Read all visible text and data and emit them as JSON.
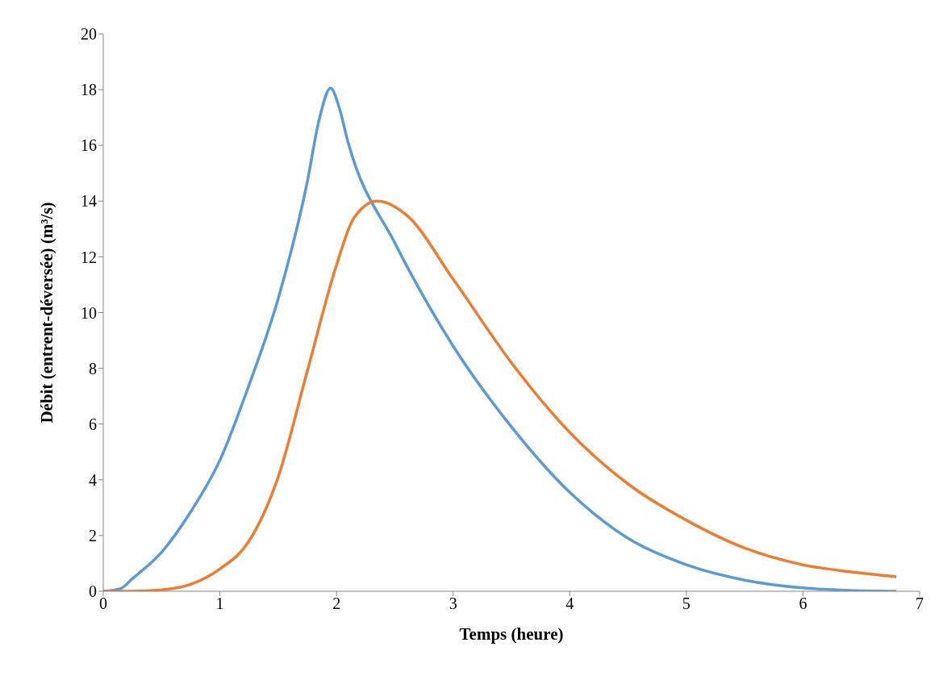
{
  "chart_data": {
    "type": "line",
    "xlabel": "Temps (heure)",
    "ylabel": "Débit (entrent-déversée) (m³/s)",
    "xlim": [
      0,
      7
    ],
    "xticks": [
      0,
      1,
      2,
      3,
      4,
      5,
      6,
      7
    ],
    "ylim": [
      0,
      20
    ],
    "yticks": [
      0,
      2,
      4,
      6,
      8,
      10,
      12,
      14,
      16,
      18,
      20
    ],
    "series": [
      {
        "color": "#5b9bd5",
        "x": [
          0,
          0.15,
          0.25,
          0.5,
          0.75,
          1,
          1.25,
          1.5,
          1.75,
          1.85,
          1.95,
          2.02,
          2.1,
          2.5,
          3,
          3.5,
          4,
          4.5,
          5,
          5.5,
          6,
          6.4,
          6.8
        ],
        "values": [
          0,
          0.1,
          0.45,
          1.4,
          2.85,
          4.7,
          7.4,
          10.5,
          14.7,
          16.9,
          18.05,
          17.4,
          16.1,
          12.5,
          8.8,
          5.9,
          3.55,
          1.9,
          0.95,
          0.4,
          0.12,
          0.03,
          0
        ]
      },
      {
        "color": "#ed7d31",
        "x": [
          0,
          0.25,
          0.5,
          0.75,
          1,
          1.25,
          1.5,
          1.75,
          2,
          2.15,
          2.35,
          2.6,
          3,
          3.5,
          4,
          4.5,
          5,
          5.5,
          6,
          6.4,
          6.8
        ],
        "values": [
          0,
          0,
          0.05,
          0.25,
          0.8,
          1.8,
          4.1,
          7.9,
          11.7,
          13.4,
          14,
          13.5,
          11.2,
          8.2,
          5.7,
          3.85,
          2.55,
          1.55,
          0.95,
          0.7,
          0.52
        ]
      }
    ]
  }
}
